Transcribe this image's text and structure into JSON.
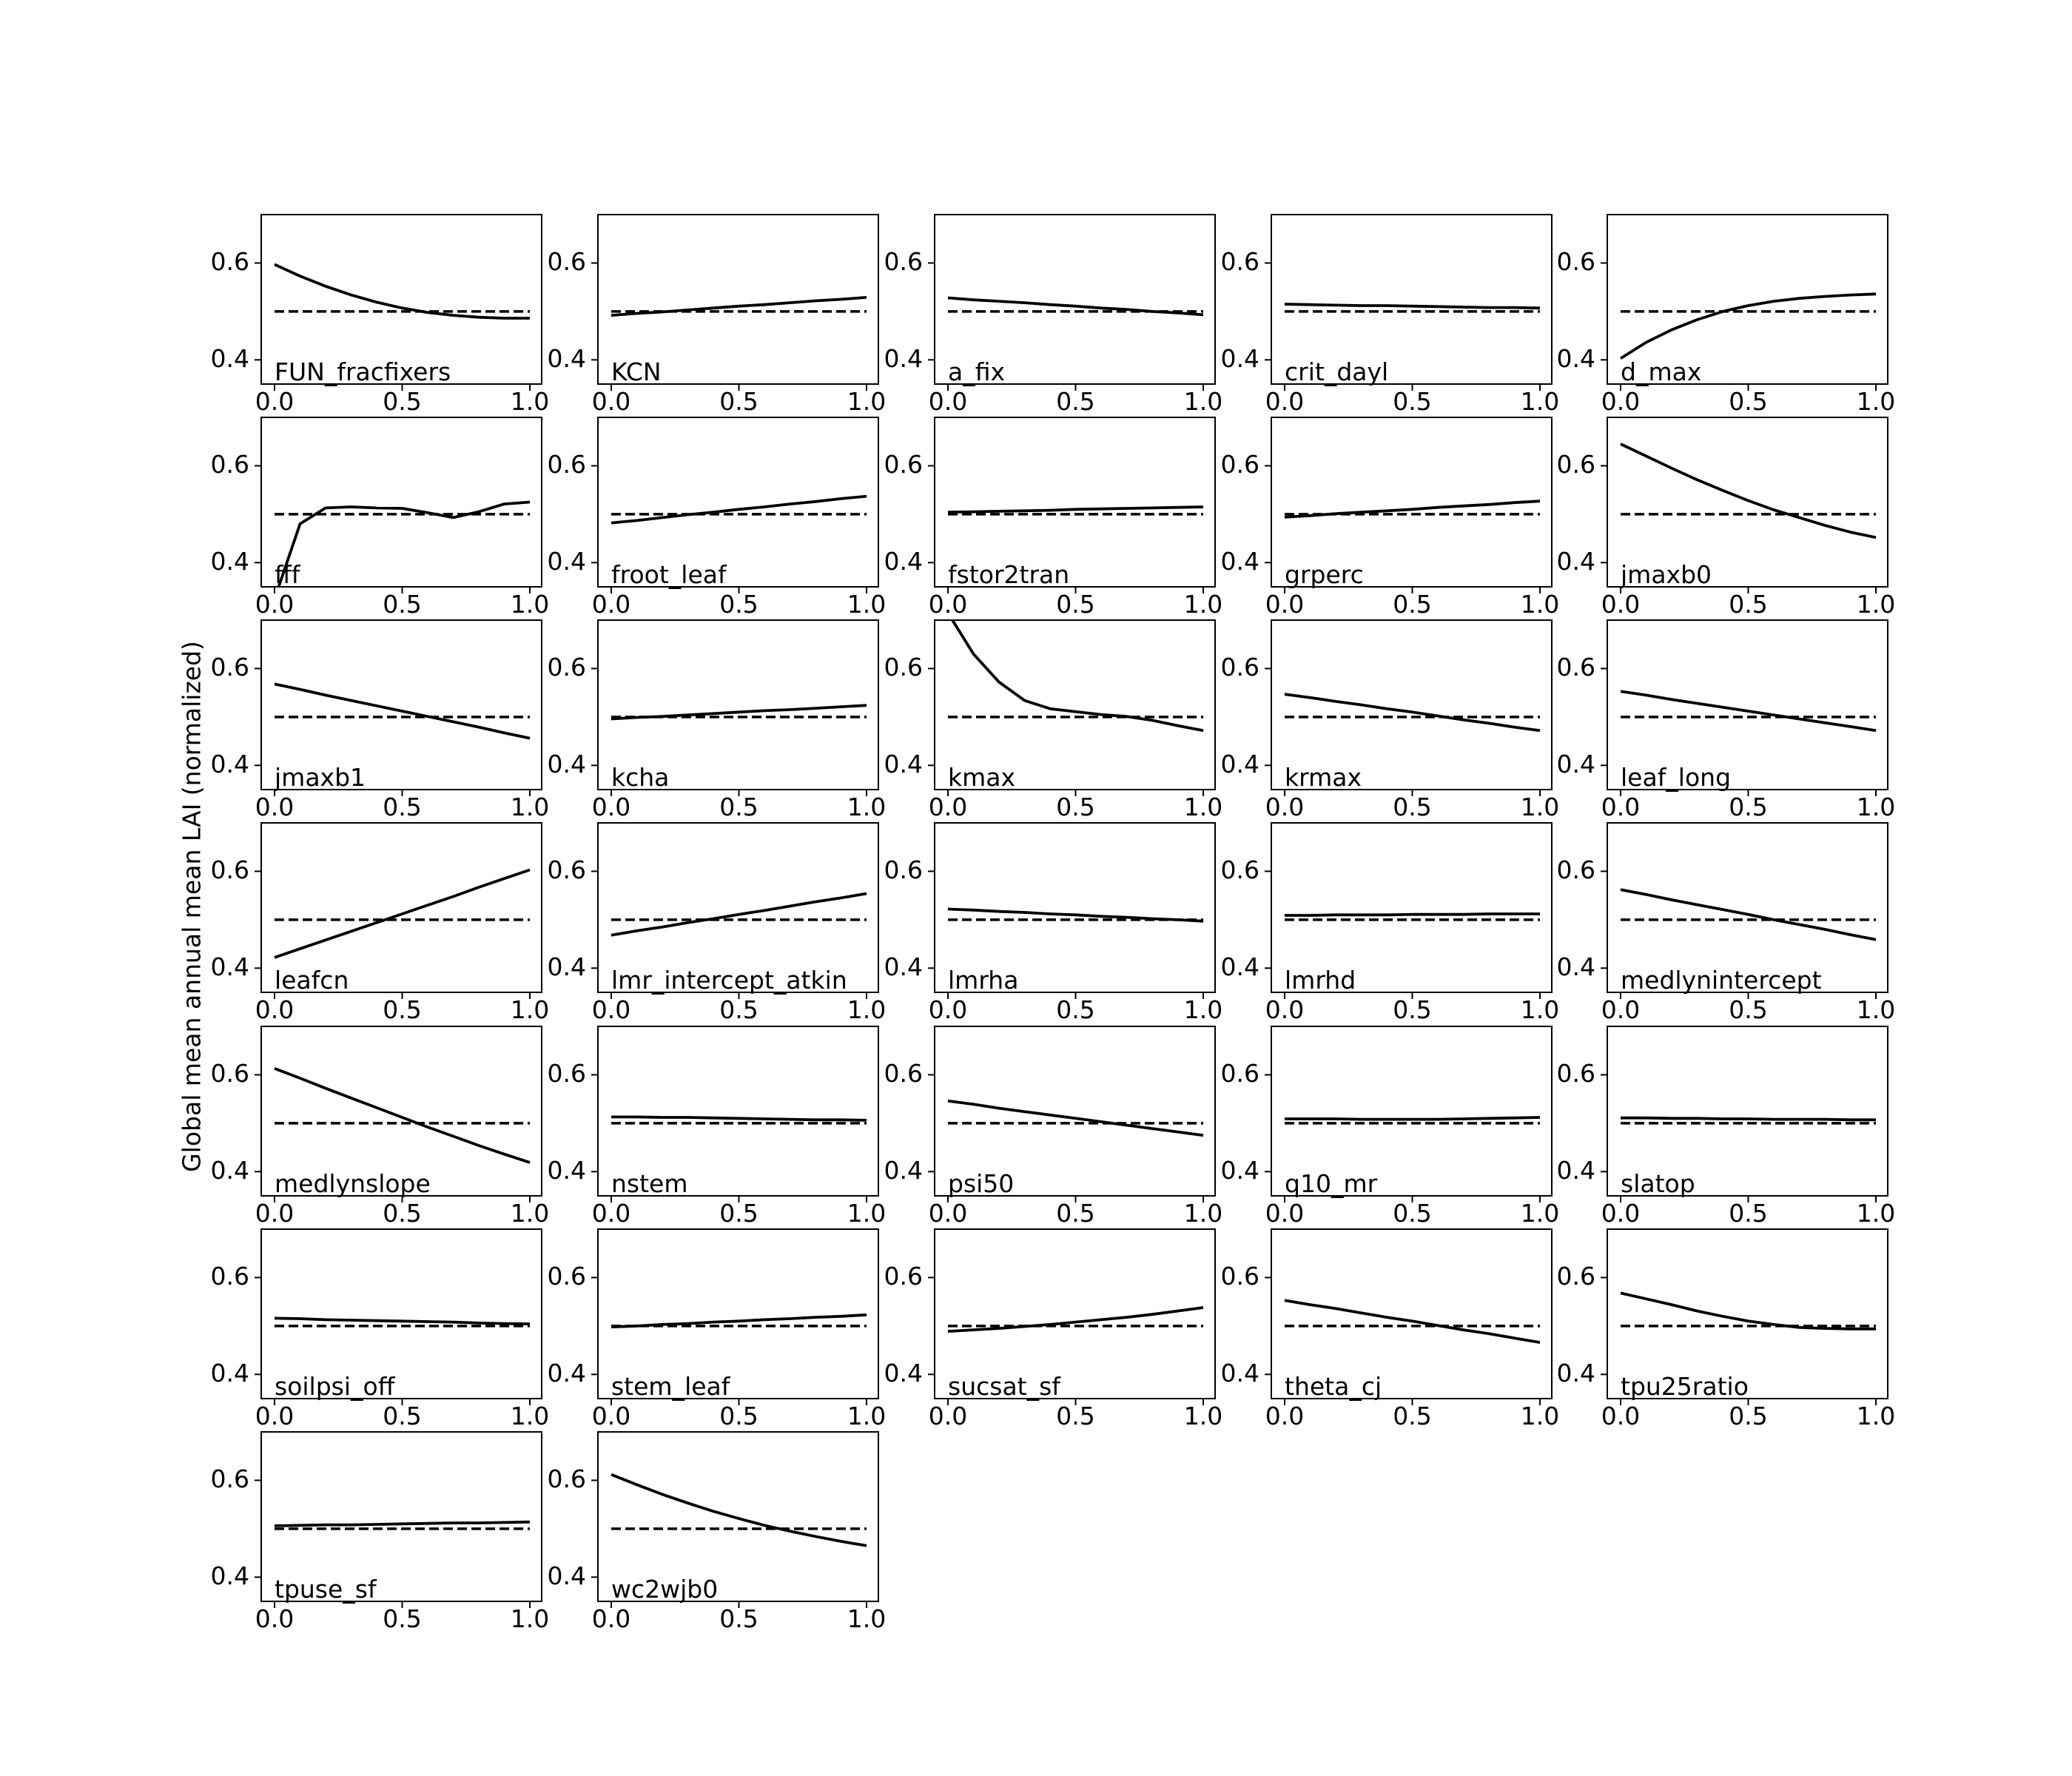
{
  "ylabel": "Global mean annual mean LAI (normalized)",
  "chart_data": {
    "type": "line",
    "ylabel": "Global mean annual mean LAI (normalized)",
    "xlim": [
      0,
      1
    ],
    "ylim": [
      0.35,
      0.7
    ],
    "xticks": [
      "0.0",
      "0.5",
      "1.0"
    ],
    "yticks": [
      "0.4",
      "0.6"
    ],
    "x": [
      0,
      0.1,
      0.2,
      0.3,
      0.4,
      0.5,
      0.6,
      0.7,
      0.8,
      0.9,
      1.0
    ],
    "reference_line": {
      "style": "dashed",
      "y": 0.5
    },
    "panels": [
      {
        "name": "FUN_fracfixers",
        "ref": 0.5,
        "values": [
          0.597,
          0.573,
          0.552,
          0.534,
          0.519,
          0.507,
          0.498,
          0.492,
          0.488,
          0.486,
          0.486
        ]
      },
      {
        "name": "KCN",
        "ref": 0.5,
        "values": [
          0.492,
          0.496,
          0.499,
          0.503,
          0.507,
          0.511,
          0.514,
          0.518,
          0.522,
          0.525,
          0.529
        ]
      },
      {
        "name": "a_fix",
        "ref": 0.5,
        "values": [
          0.528,
          0.524,
          0.521,
          0.518,
          0.514,
          0.511,
          0.507,
          0.504,
          0.5,
          0.497,
          0.493
        ]
      },
      {
        "name": "crit_dayl",
        "ref": 0.5,
        "values": [
          0.515,
          0.514,
          0.513,
          0.512,
          0.512,
          0.511,
          0.51,
          0.509,
          0.508,
          0.508,
          0.507
        ]
      },
      {
        "name": "d_max",
        "ref": 0.5,
        "values": [
          0.403,
          0.436,
          0.462,
          0.483,
          0.5,
          0.512,
          0.521,
          0.527,
          0.531,
          0.534,
          0.536
        ]
      },
      {
        "name": "fff",
        "ref": 0.5,
        "values": [
          0.325,
          0.48,
          0.513,
          0.515,
          0.513,
          0.512,
          0.503,
          0.493,
          0.505,
          0.521,
          0.525
        ]
      },
      {
        "name": "froot_leaf",
        "ref": 0.5,
        "values": [
          0.482,
          0.487,
          0.493,
          0.499,
          0.504,
          0.51,
          0.515,
          0.521,
          0.526,
          0.532,
          0.537
        ]
      },
      {
        "name": "fstor2tran",
        "ref": 0.5,
        "values": [
          0.504,
          0.505,
          0.506,
          0.507,
          0.508,
          0.51,
          0.511,
          0.512,
          0.513,
          0.514,
          0.515
        ]
      },
      {
        "name": "grperc",
        "ref": 0.5,
        "values": [
          0.494,
          0.497,
          0.501,
          0.504,
          0.507,
          0.51,
          0.514,
          0.517,
          0.52,
          0.524,
          0.527
        ]
      },
      {
        "name": "jmaxb0",
        "ref": 0.5,
        "values": [
          0.645,
          0.62,
          0.595,
          0.571,
          0.549,
          0.528,
          0.509,
          0.493,
          0.477,
          0.463,
          0.452
        ]
      },
      {
        "name": "jmaxb1",
        "ref": 0.5,
        "values": [
          0.568,
          0.557,
          0.545,
          0.534,
          0.523,
          0.512,
          0.501,
          0.49,
          0.479,
          0.467,
          0.456
        ]
      },
      {
        "name": "kcha",
        "ref": 0.5,
        "values": [
          0.496,
          0.499,
          0.501,
          0.504,
          0.507,
          0.51,
          0.513,
          0.515,
          0.518,
          0.521,
          0.524
        ]
      },
      {
        "name": "kmax",
        "ref": 0.5,
        "values": [
          0.715,
          0.63,
          0.572,
          0.534,
          0.517,
          0.511,
          0.505,
          0.501,
          0.493,
          0.482,
          0.472
        ]
      },
      {
        "name": "krmax",
        "ref": 0.5,
        "values": [
          0.547,
          0.54,
          0.532,
          0.525,
          0.517,
          0.51,
          0.502,
          0.494,
          0.487,
          0.479,
          0.472
        ]
      },
      {
        "name": "leaf_long",
        "ref": 0.5,
        "values": [
          0.553,
          0.545,
          0.536,
          0.528,
          0.52,
          0.512,
          0.504,
          0.496,
          0.488,
          0.48,
          0.472
        ]
      },
      {
        "name": "leafcn",
        "ref": 0.5,
        "values": [
          0.422,
          0.44,
          0.458,
          0.476,
          0.494,
          0.512,
          0.53,
          0.548,
          0.567,
          0.585,
          0.603
        ]
      },
      {
        "name": "lmr_intercept_atkin",
        "ref": 0.5,
        "values": [
          0.468,
          0.477,
          0.485,
          0.494,
          0.502,
          0.511,
          0.519,
          0.528,
          0.537,
          0.545,
          0.554
        ]
      },
      {
        "name": "lmrha",
        "ref": 0.5,
        "values": [
          0.522,
          0.52,
          0.517,
          0.515,
          0.512,
          0.51,
          0.507,
          0.505,
          0.502,
          0.5,
          0.497
        ]
      },
      {
        "name": "lmrhd",
        "ref": 0.5,
        "values": [
          0.509,
          0.509,
          0.51,
          0.51,
          0.51,
          0.511,
          0.511,
          0.511,
          0.512,
          0.512,
          0.512
        ]
      },
      {
        "name": "medlynintercept",
        "ref": 0.5,
        "values": [
          0.562,
          0.552,
          0.541,
          0.531,
          0.521,
          0.511,
          0.5,
          0.49,
          0.48,
          0.469,
          0.459
        ]
      },
      {
        "name": "medlynslope",
        "ref": 0.5,
        "values": [
          0.613,
          0.593,
          0.572,
          0.552,
          0.532,
          0.512,
          0.492,
          0.473,
          0.454,
          0.436,
          0.419
        ]
      },
      {
        "name": "nstem",
        "ref": 0.5,
        "values": [
          0.513,
          0.513,
          0.512,
          0.512,
          0.511,
          0.51,
          0.509,
          0.508,
          0.507,
          0.507,
          0.506
        ]
      },
      {
        "name": "psi50",
        "ref": 0.5,
        "values": [
          0.546,
          0.539,
          0.531,
          0.524,
          0.517,
          0.51,
          0.503,
          0.496,
          0.489,
          0.482,
          0.475
        ]
      },
      {
        "name": "q10_mr",
        "ref": 0.5,
        "values": [
          0.509,
          0.509,
          0.509,
          0.508,
          0.508,
          0.508,
          0.508,
          0.509,
          0.51,
          0.511,
          0.512
        ]
      },
      {
        "name": "slatop",
        "ref": 0.5,
        "values": [
          0.511,
          0.511,
          0.51,
          0.51,
          0.509,
          0.509,
          0.508,
          0.508,
          0.508,
          0.507,
          0.507
        ]
      },
      {
        "name": "soilpsi_off",
        "ref": 0.5,
        "values": [
          0.516,
          0.515,
          0.513,
          0.512,
          0.511,
          0.51,
          0.509,
          0.508,
          0.506,
          0.505,
          0.504
        ]
      },
      {
        "name": "stem_leaf",
        "ref": 0.5,
        "values": [
          0.498,
          0.5,
          0.503,
          0.505,
          0.508,
          0.51,
          0.513,
          0.515,
          0.518,
          0.52,
          0.523
        ]
      },
      {
        "name": "sucsat_sf",
        "ref": 0.5,
        "values": [
          0.489,
          0.492,
          0.495,
          0.499,
          0.503,
          0.508,
          0.513,
          0.518,
          0.524,
          0.531,
          0.538
        ]
      },
      {
        "name": "theta_cj",
        "ref": 0.5,
        "values": [
          0.553,
          0.544,
          0.536,
          0.527,
          0.518,
          0.51,
          0.501,
          0.492,
          0.484,
          0.475,
          0.466
        ]
      },
      {
        "name": "tpu25ratio",
        "ref": 0.5,
        "values": [
          0.568,
          0.556,
          0.544,
          0.531,
          0.52,
          0.51,
          0.503,
          0.497,
          0.495,
          0.494,
          0.494
        ]
      },
      {
        "name": "tpuse_sf",
        "ref": 0.5,
        "values": [
          0.506,
          0.507,
          0.508,
          0.508,
          0.509,
          0.51,
          0.511,
          0.512,
          0.512,
          0.513,
          0.514
        ]
      },
      {
        "name": "wc2wjb0",
        "ref": 0.5,
        "values": [
          0.612,
          0.591,
          0.571,
          0.553,
          0.536,
          0.521,
          0.507,
          0.495,
          0.484,
          0.474,
          0.465
        ]
      }
    ]
  }
}
